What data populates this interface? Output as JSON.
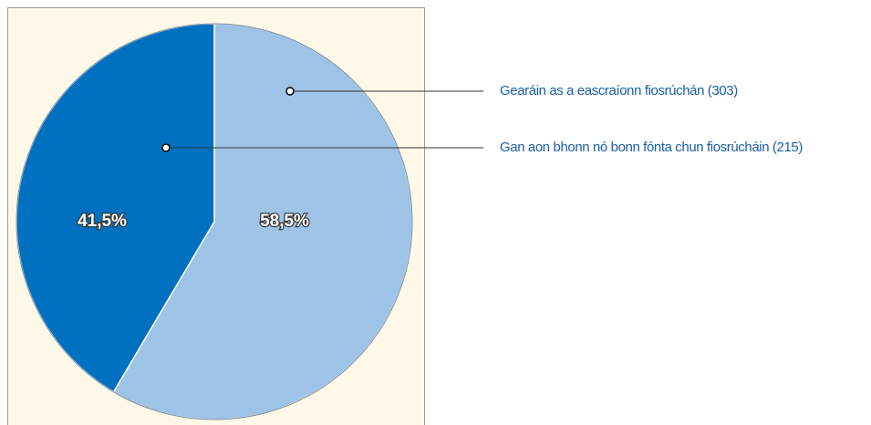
{
  "chart_data": {
    "type": "pie",
    "series": [
      {
        "name": "Gearáin as a eascraíonn fiosrúchán (303)",
        "color": "#9dc3e6",
        "values": [
          58.5
        ],
        "value_labels": [
          "58,5%"
        ]
      },
      {
        "name": "Gan aon bhonn nó bonn fónta chun fiosrúcháin (215)",
        "color": "#0070c0",
        "values": [
          41.5
        ],
        "value_labels": [
          "41,5%"
        ]
      }
    ]
  }
}
